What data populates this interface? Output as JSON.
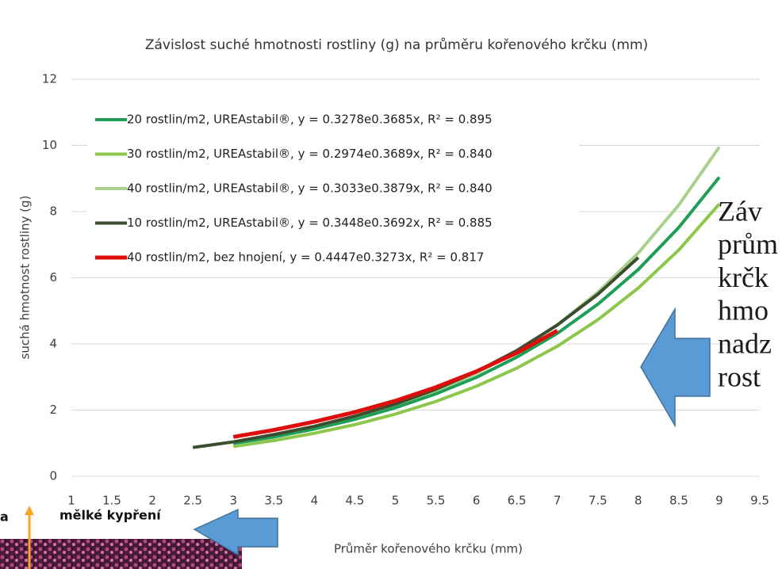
{
  "chart_data": {
    "type": "line",
    "title": "Závislost suché hmotnosti rostliny (g) na průměru kořenového krčku (mm)",
    "x_label": "Průměr kořenového krčku (mm)",
    "y_label": "suchá hmotnost rostliny (g)",
    "xlim": [
      1,
      9.5
    ],
    "xticks": [
      1,
      1.5,
      2,
      2.5,
      3,
      3.5,
      4,
      4.5,
      5,
      5.5,
      6,
      6.5,
      7,
      7.5,
      8,
      8.5,
      9,
      9.5
    ],
    "ylim": [
      0,
      12
    ],
    "yticks": [
      0,
      2,
      4,
      6,
      8,
      10,
      12
    ],
    "grid": true,
    "legend": "upper-left",
    "series": [
      {
        "name": "20 rostlin/m2, UREAstabil®, y = 0.3278e0.3685x, R² = 0.895",
        "color": "#1e9e57",
        "x": [
          3,
          3.5,
          4,
          4.5,
          5,
          5.5,
          6,
          6.5,
          7,
          7.5,
          8,
          8.5,
          9
        ],
        "values": [
          0.99,
          1.19,
          1.43,
          1.72,
          2.07,
          2.49,
          2.99,
          3.6,
          4.32,
          5.2,
          6.25,
          7.52,
          9.04
        ]
      },
      {
        "name": "30 rostlin/m2, UREAstabil®, y = 0.2974e0.3689x, R² = 0.840",
        "color": "#8cc64a",
        "x": [
          3,
          3.5,
          4,
          4.5,
          5,
          5.5,
          6,
          6.5,
          7,
          7.5,
          8,
          8.5,
          9
        ],
        "values": [
          0.9,
          1.08,
          1.3,
          1.56,
          1.88,
          2.26,
          2.72,
          3.27,
          3.93,
          4.73,
          5.69,
          6.84,
          8.23
        ]
      },
      {
        "name": "40 rostlin/m2, UREAstabil®, y = 0.3033e0.3879x, R² = 0.840",
        "color": "#a9d18e",
        "x": [
          3,
          3.5,
          4,
          4.5,
          5,
          5.5,
          6,
          6.5,
          7,
          7.5,
          8,
          8.5,
          9
        ],
        "values": [
          0.97,
          1.18,
          1.43,
          1.74,
          2.11,
          2.56,
          3.11,
          3.77,
          4.58,
          5.56,
          6.75,
          8.2,
          9.95
        ]
      },
      {
        "name": "10 rostlin/m2, UREAstabil®, y = 0.3448e0.3692x, R² = 0.885",
        "color": "#3b4d2e",
        "x": [
          2.5,
          3,
          3.5,
          4,
          4.5,
          5,
          5.5,
          6,
          6.5,
          7,
          7.5,
          8
        ],
        "values": [
          0.87,
          1.04,
          1.26,
          1.51,
          1.82,
          2.18,
          2.63,
          3.16,
          3.8,
          4.57,
          5.5,
          6.61
        ]
      },
      {
        "name": "40 rostlin/m2, bez hnojení, y = 0.4447e0.3273x, R² = 0.817",
        "color": "#e00d0d",
        "x": [
          3,
          3.5,
          4,
          4.5,
          5,
          5.5,
          6,
          6.5,
          7
        ],
        "values": [
          1.19,
          1.4,
          1.65,
          1.94,
          2.28,
          2.69,
          3.17,
          3.73,
          4.4
        ]
      }
    ],
    "annotations": [
      "Záv",
      "prům",
      "krčk",
      "hmo",
      "nadz",
      "rost"
    ],
    "inset_labels": [
      "a",
      "mělké kypření"
    ]
  }
}
